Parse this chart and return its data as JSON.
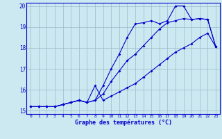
{
  "title": "Graphe des températures (°C)",
  "bg_color": "#cce8f0",
  "line_color": "#0000cc",
  "grid_color": "#99bbcc",
  "xlim": [
    -0.5,
    23.5
  ],
  "ylim": [
    14.85,
    20.15
  ],
  "yticks": [
    15,
    16,
    17,
    18,
    19,
    20
  ],
  "xticks": [
    0,
    1,
    2,
    3,
    4,
    5,
    6,
    7,
    8,
    9,
    10,
    11,
    12,
    13,
    14,
    15,
    16,
    17,
    18,
    19,
    20,
    21,
    22,
    23
  ],
  "hours": [
    0,
    1,
    2,
    3,
    4,
    5,
    6,
    7,
    8,
    9,
    10,
    11,
    12,
    13,
    14,
    15,
    16,
    17,
    18,
    19,
    20,
    21,
    22,
    23
  ],
  "line1": [
    15.2,
    15.2,
    15.2,
    15.2,
    15.3,
    15.4,
    15.5,
    15.4,
    15.5,
    16.2,
    17.0,
    17.7,
    18.5,
    19.15,
    19.2,
    19.3,
    19.15,
    19.3,
    20.0,
    20.0,
    19.35,
    19.4,
    19.35,
    18.05
  ],
  "line2": [
    15.2,
    15.2,
    15.2,
    15.2,
    15.3,
    15.4,
    15.5,
    15.4,
    15.5,
    15.8,
    16.4,
    16.9,
    17.4,
    17.7,
    18.1,
    18.5,
    18.9,
    19.2,
    19.3,
    19.4,
    19.35,
    19.4,
    19.35,
    18.05
  ],
  "line3": [
    15.2,
    15.2,
    15.2,
    15.2,
    15.3,
    15.4,
    15.5,
    15.4,
    16.2,
    15.5,
    15.7,
    15.9,
    16.1,
    16.3,
    16.6,
    16.9,
    17.2,
    17.5,
    17.8,
    18.0,
    18.2,
    18.5,
    18.7,
    18.05
  ]
}
